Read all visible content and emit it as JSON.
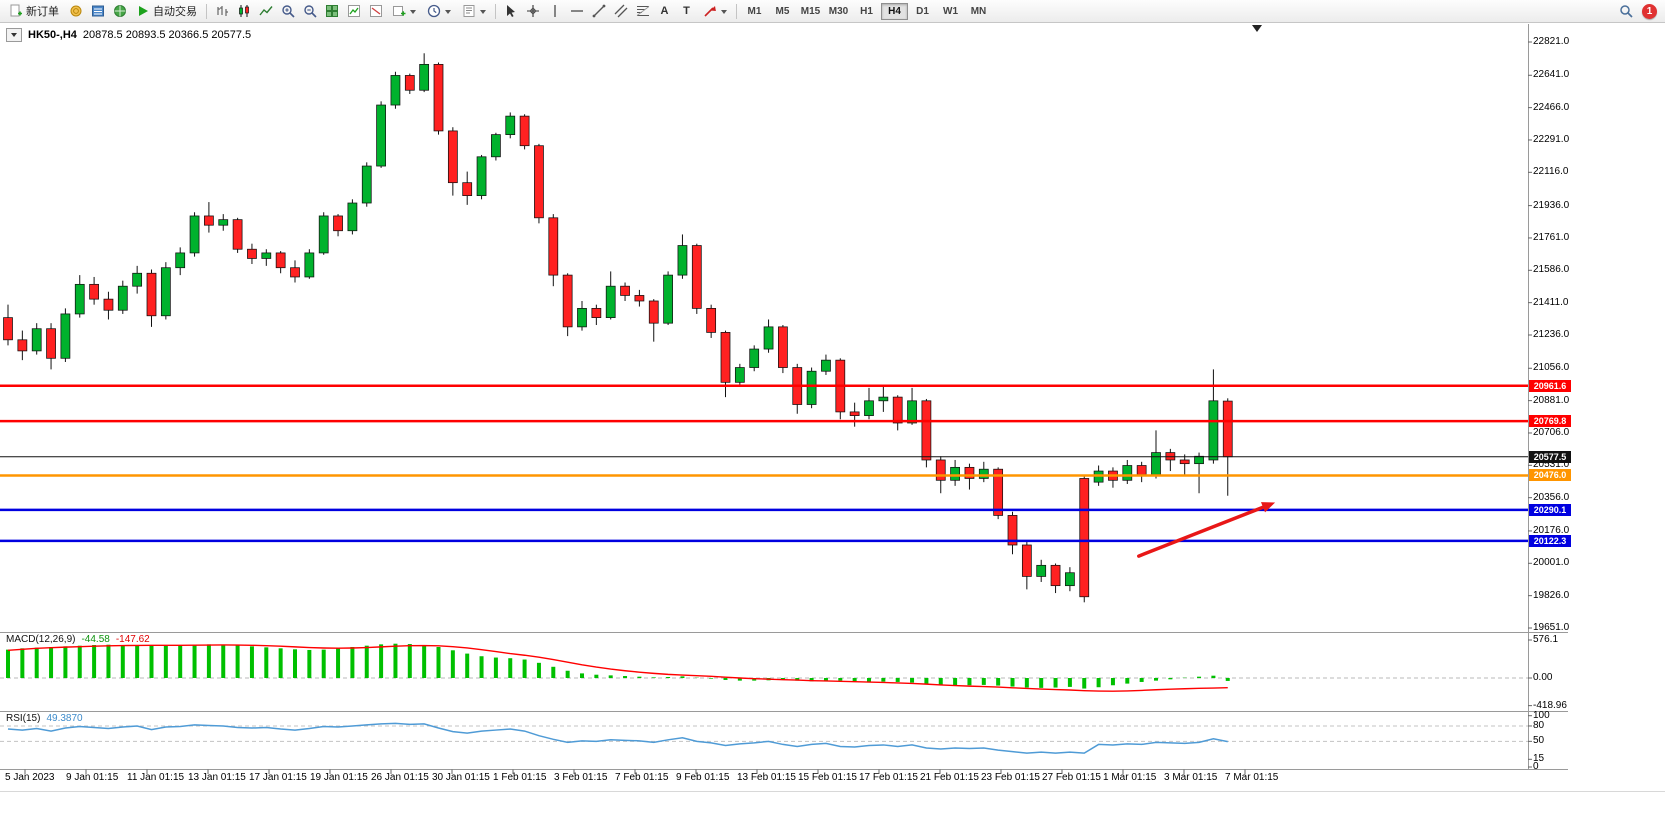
{
  "toolbar": {
    "new_order": "新订单",
    "auto_trading": "自动交易",
    "text_tool": "A",
    "label_tool": "T",
    "timeframes": [
      "M1",
      "M5",
      "M15",
      "M30",
      "H1",
      "H4",
      "D1",
      "W1",
      "MN"
    ],
    "active_timeframe": "H4",
    "notification_count": "1"
  },
  "chart_data": [
    {
      "type": "candlestick",
      "symbol": "HK50-",
      "timeframe": "H4",
      "title": "HK50-,H4",
      "ohlc_label": "20878.5 20893.5 20366.5 20577.5",
      "open": 20878.5,
      "high": 20893.5,
      "low": 20366.5,
      "close": 20577.5,
      "up_color": "#00B22D",
      "down_color": "#FF2121",
      "wick_color": "#111111",
      "y_ticks": [
        22821,
        22641,
        22466,
        22291,
        22116,
        21936,
        21761,
        21586,
        21411,
        21236,
        21056,
        20881,
        20706,
        20531,
        20356,
        20176,
        20001,
        19826,
        19651
      ],
      "levels": [
        {
          "price": 20961.6,
          "color": "#FF0000",
          "width": 2.5
        },
        {
          "price": 20769.8,
          "color": "#FF0000",
          "width": 2.5
        },
        {
          "price": 20577.5,
          "color": "#111111",
          "width": 1
        },
        {
          "price": 20476.0,
          "color": "#FF9500",
          "width": 2.5
        },
        {
          "price": 20290.1,
          "color": "#0000E0",
          "width": 2.5
        },
        {
          "price": 20122.3,
          "color": "#0000E0",
          "width": 2.5
        }
      ],
      "x_labels": [
        "5 Jan 2023",
        "9 Jan 01:15",
        "11 Jan 01:15",
        "13 Jan 01:15",
        "17 Jan 01:15",
        "19 Jan 01:15",
        "26 Jan 01:15",
        "30 Jan 01:15",
        "1 Feb 01:15",
        "3 Feb 01:15",
        "7 Feb 01:15",
        "9 Feb 01:15",
        "13 Feb 01:15",
        "15 Feb 01:15",
        "17 Feb 01:15",
        "21 Feb 01:15",
        "23 Feb 01:15",
        "27 Feb 01:15",
        "1 Mar 01:15",
        "3 Mar 01:15",
        "7 Mar 01:15"
      ],
      "annotation": {
        "type": "arrow",
        "color": "#E81717",
        "from_index": 78.8,
        "from_price": 20040,
        "to_index": 88.3,
        "to_price": 20330
      },
      "candles": [
        [
          21330,
          21400,
          21180,
          21210
        ],
        [
          21210,
          21260,
          21100,
          21150
        ],
        [
          21150,
          21300,
          21130,
          21270
        ],
        [
          21270,
          21300,
          21050,
          21110
        ],
        [
          21110,
          21380,
          21090,
          21350
        ],
        [
          21350,
          21560,
          21330,
          21510
        ],
        [
          21510,
          21550,
          21400,
          21430
        ],
        [
          21430,
          21470,
          21320,
          21370
        ],
        [
          21370,
          21530,
          21350,
          21500
        ],
        [
          21500,
          21610,
          21460,
          21570
        ],
        [
          21570,
          21590,
          21280,
          21340
        ],
        [
          21340,
          21630,
          21320,
          21600
        ],
        [
          21600,
          21710,
          21560,
          21680
        ],
        [
          21680,
          21900,
          21660,
          21880
        ],
        [
          21880,
          21955,
          21790,
          21830
        ],
        [
          21830,
          21890,
          21800,
          21860
        ],
        [
          21860,
          21870,
          21680,
          21700
        ],
        [
          21700,
          21730,
          21620,
          21650
        ],
        [
          21650,
          21700,
          21610,
          21680
        ],
        [
          21680,
          21690,
          21570,
          21600
        ],
        [
          21600,
          21640,
          21520,
          21550
        ],
        [
          21550,
          21700,
          21540,
          21680
        ],
        [
          21680,
          21900,
          21670,
          21880
        ],
        [
          21880,
          21890,
          21770,
          21800
        ],
        [
          21800,
          21970,
          21780,
          21950
        ],
        [
          21950,
          22170,
          21930,
          22150
        ],
        [
          22150,
          22500,
          22140,
          22480
        ],
        [
          22480,
          22660,
          22460,
          22640
        ],
        [
          22640,
          22650,
          22540,
          22560
        ],
        [
          22560,
          22760,
          22550,
          22700
        ],
        [
          22700,
          22710,
          22320,
          22340
        ],
        [
          22340,
          22360,
          21990,
          22060
        ],
        [
          22060,
          22120,
          21940,
          21990
        ],
        [
          21990,
          22210,
          21970,
          22200
        ],
        [
          22200,
          22330,
          22180,
          22320
        ],
        [
          22320,
          22440,
          22300,
          22420
        ],
        [
          22420,
          22430,
          22240,
          22260
        ],
        [
          22260,
          22270,
          21840,
          21870
        ],
        [
          21870,
          21890,
          21500,
          21560
        ],
        [
          21560,
          21570,
          21230,
          21280
        ],
        [
          21280,
          21420,
          21260,
          21380
        ],
        [
          21380,
          21400,
          21290,
          21330
        ],
        [
          21330,
          21580,
          21320,
          21500
        ],
        [
          21500,
          21520,
          21420,
          21450
        ],
        [
          21450,
          21480,
          21390,
          21420
        ],
        [
          21420,
          21430,
          21200,
          21300
        ],
        [
          21300,
          21580,
          21290,
          21560
        ],
        [
          21560,
          21780,
          21540,
          21720
        ],
        [
          21720,
          21730,
          21350,
          21380
        ],
        [
          21380,
          21400,
          21220,
          21250
        ],
        [
          21250,
          21260,
          20900,
          20980
        ],
        [
          20980,
          21080,
          20960,
          21060
        ],
        [
          21060,
          21180,
          21040,
          21160
        ],
        [
          21160,
          21320,
          21140,
          21280
        ],
        [
          21280,
          21290,
          21030,
          21060
        ],
        [
          21060,
          21080,
          20810,
          20860
        ],
        [
          20860,
          21060,
          20840,
          21040
        ],
        [
          21040,
          21130,
          21020,
          21100
        ],
        [
          21100,
          21110,
          20780,
          20820
        ],
        [
          20820,
          20870,
          20740,
          20800
        ],
        [
          20800,
          20950,
          20780,
          20880
        ],
        [
          20880,
          20960,
          20820,
          20900
        ],
        [
          20900,
          20910,
          20720,
          20760
        ],
        [
          20760,
          20950,
          20750,
          20880
        ],
        [
          20880,
          20890,
          20520,
          20560
        ],
        [
          20560,
          20580,
          20380,
          20450
        ],
        [
          20450,
          20560,
          20420,
          20520
        ],
        [
          20520,
          20540,
          20400,
          20460
        ],
        [
          20460,
          20550,
          20440,
          20510
        ],
        [
          20510,
          20520,
          20240,
          20260
        ],
        [
          20260,
          20280,
          20050,
          20100
        ],
        [
          20100,
          20120,
          19860,
          19930
        ],
        [
          19930,
          20020,
          19900,
          19990
        ],
        [
          19990,
          20000,
          19840,
          19880
        ],
        [
          19880,
          19980,
          19850,
          19950
        ],
        [
          20460,
          20480,
          19790,
          19820
        ],
        [
          20440,
          20530,
          20420,
          20500
        ],
        [
          20500,
          20520,
          20410,
          20450
        ],
        [
          20450,
          20560,
          20430,
          20530
        ],
        [
          20530,
          20550,
          20440,
          20480
        ],
        [
          20480,
          20720,
          20460,
          20600
        ],
        [
          20600,
          20620,
          20500,
          20560
        ],
        [
          20560,
          20590,
          20480,
          20540
        ],
        [
          20540,
          20600,
          20380,
          20580
        ],
        [
          20560,
          21050,
          20540,
          20880
        ],
        [
          20878.5,
          20893.5,
          20366.5,
          20577.5
        ]
      ]
    },
    {
      "type": "macd",
      "label": "MACD(12,26,9)",
      "value_main": "-44.58",
      "value_signal": "-147.62",
      "hist_color": "#00C000",
      "signal_color": "#FF0000",
      "y_ticks": [
        {
          "v": 576.1,
          "label": "576.1"
        },
        {
          "v": 0,
          "label": "0.00"
        },
        {
          "v": -418.96,
          "label": "-418.96"
        }
      ],
      "histogram": [
        430,
        450,
        460,
        470,
        480,
        490,
        500,
        505,
        500,
        495,
        490,
        485,
        490,
        500,
        510,
        505,
        495,
        480,
        465,
        450,
        435,
        425,
        430,
        450,
        470,
        490,
        510,
        520,
        515,
        500,
        470,
        420,
        370,
        330,
        310,
        300,
        280,
        230,
        170,
        110,
        70,
        50,
        40,
        30,
        20,
        10,
        15,
        25,
        5,
        -10,
        -30,
        -40,
        -40,
        -35,
        -30,
        -40,
        -50,
        -45,
        -40,
        -50,
        -55,
        -55,
        -60,
        -70,
        -90,
        -110,
        -115,
        -110,
        -105,
        -115,
        -130,
        -145,
        -150,
        -145,
        -135,
        -160,
        -140,
        -110,
        -85,
        -60,
        -40,
        -20,
        5,
        20,
        35,
        -44.58
      ],
      "signal": [
        420,
        435,
        450,
        460,
        468,
        475,
        482,
        488,
        492,
        494,
        495,
        495,
        496,
        498,
        500,
        502,
        500,
        496,
        490,
        482,
        472,
        462,
        455,
        452,
        455,
        462,
        472,
        482,
        490,
        492,
        488,
        475,
        455,
        430,
        400,
        370,
        345,
        315,
        280,
        240,
        200,
        165,
        135,
        110,
        88,
        70,
        55,
        45,
        35,
        25,
        12,
        0,
        -10,
        -18,
        -25,
        -32,
        -40,
        -45,
        -50,
        -56,
        -62,
        -68,
        -75,
        -83,
        -93,
        -105,
        -115,
        -123,
        -130,
        -138,
        -148,
        -158,
        -168,
        -176,
        -182,
        -192,
        -198,
        -200,
        -196,
        -188,
        -178,
        -170,
        -163,
        -157,
        -152,
        -147.62
      ]
    },
    {
      "type": "rsi",
      "label": "RSI(15)",
      "value": "49.3870",
      "line_color": "#4F9BD6",
      "levels": [
        80,
        50
      ],
      "y_ticks": [
        100,
        80,
        50,
        15,
        0
      ],
      "values": [
        74,
        72,
        75,
        70,
        76,
        79,
        77,
        75,
        78,
        80,
        73,
        78,
        79,
        82,
        81,
        80,
        77,
        76,
        77,
        74,
        72,
        75,
        79,
        78,
        80,
        82,
        84,
        85,
        83,
        84,
        76,
        69,
        66,
        70,
        72,
        74,
        70,
        61,
        54,
        48,
        51,
        50,
        53,
        52,
        51,
        48,
        53,
        57,
        50,
        47,
        42,
        45,
        47,
        50,
        44,
        40,
        44,
        46,
        40,
        39,
        42,
        43,
        40,
        43,
        37,
        35,
        37,
        36,
        37,
        33,
        30,
        27,
        29,
        27,
        29,
        27,
        44,
        43,
        45,
        44,
        48,
        47,
        46,
        48,
        55,
        49.387
      ]
    }
  ]
}
